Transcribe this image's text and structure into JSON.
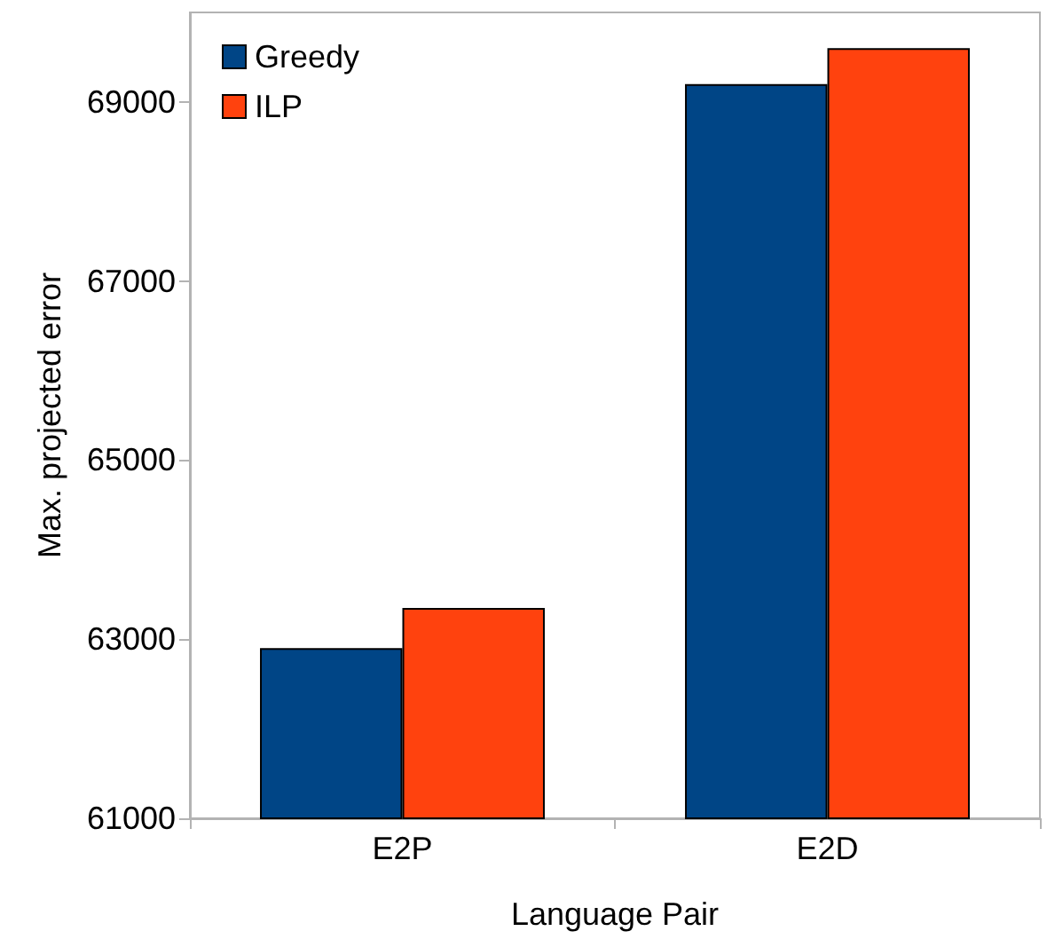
{
  "chart_data": {
    "type": "bar",
    "xlabel": "Language Pair",
    "ylabel": "Max. projected error",
    "categories": [
      "E2P",
      "E2D"
    ],
    "series": [
      {
        "name": "Greedy",
        "color": "#004586",
        "values": [
          62900,
          69200
        ]
      },
      {
        "name": "ILP",
        "color": "#ff420e",
        "values": [
          63350,
          69600
        ]
      }
    ],
    "ylim": [
      61000,
      70000
    ],
    "yticks": [
      61000,
      63000,
      65000,
      67000,
      69000
    ],
    "grid": false,
    "legend": "top left"
  }
}
